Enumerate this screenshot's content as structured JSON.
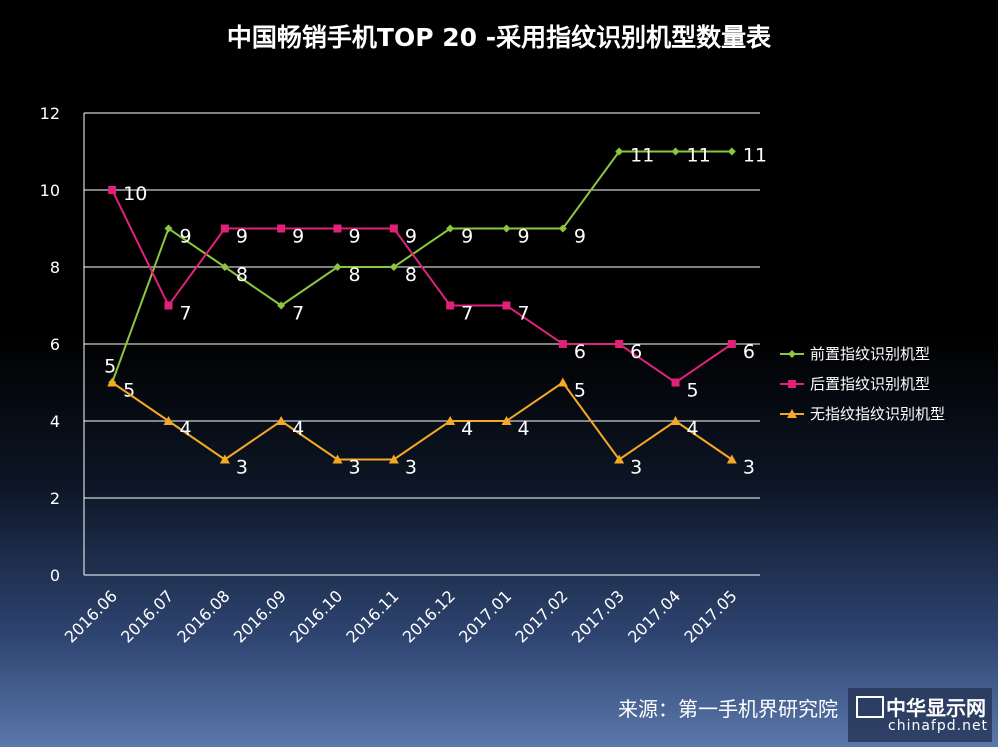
{
  "chart_data": {
    "type": "line",
    "title": "中国畅销手机TOP 20 -采用指纹识别机型数量表",
    "categories": [
      "2016.06",
      "2016.07",
      "2016.08",
      "2016.09",
      "2016.10",
      "2016.11",
      "2016.12",
      "2017.01",
      "2017.02",
      "2017.03",
      "2017.04",
      "2017.05"
    ],
    "ylim": [
      0,
      12
    ],
    "yticks": [
      "0",
      "2",
      "4",
      "6",
      "8",
      "10",
      "12"
    ],
    "grid": true,
    "legend_position": "right",
    "series": [
      {
        "name": "前置指纹识别机型",
        "color": "#8cc63e",
        "marker": "diamond",
        "values": [
          5,
          9,
          8,
          7,
          8,
          8,
          9,
          9,
          9,
          11,
          11,
          11
        ]
      },
      {
        "name": "后置指纹识别机型",
        "color": "#e0217a",
        "marker": "square",
        "values": [
          10,
          7,
          9,
          9,
          9,
          9,
          7,
          7,
          6,
          6,
          5,
          6
        ]
      },
      {
        "name": "无指纹指纹识别机型",
        "color": "#f4a824",
        "marker": "triangle",
        "values": [
          5,
          4,
          3,
          4,
          3,
          3,
          4,
          4,
          5,
          3,
          4,
          3
        ]
      }
    ]
  },
  "source": "来源：第一手机界研究院",
  "watermark": {
    "name": "中华显示网",
    "url": "chinafpd.net"
  }
}
